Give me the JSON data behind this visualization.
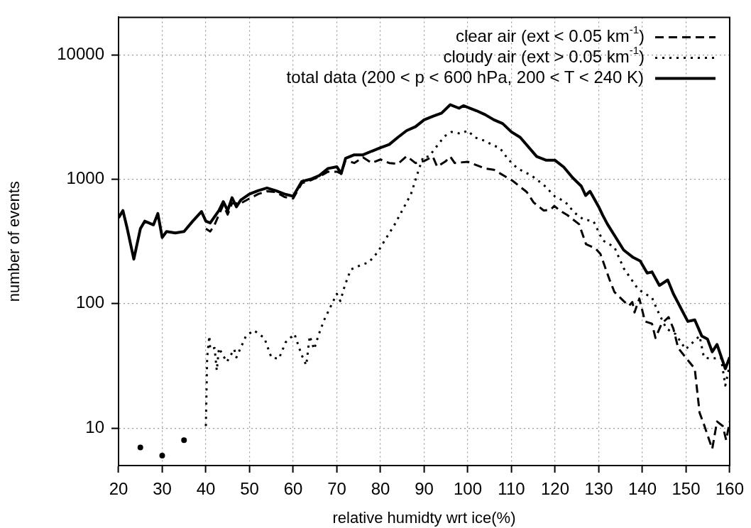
{
  "chart_data": {
    "type": "line",
    "xlabel": "relative humidty wrt ice(%)",
    "ylabel": "number of events",
    "log": "y",
    "grid": true,
    "legend": "top right",
    "xlim": [
      20,
      160
    ],
    "xticks": [
      20,
      30,
      40,
      50,
      60,
      70,
      80,
      90,
      100,
      110,
      120,
      130,
      140,
      150,
      160
    ],
    "ylim": [
      5,
      20000
    ],
    "yticks": [
      10,
      100,
      1000,
      10000
    ],
    "series": [
      {
        "name": "clear air (ext < 0.05 km$^{-1}$)",
        "color": "#000000",
        "line_style": "dashed",
        "x": [
          40,
          41,
          42,
          43,
          44,
          45,
          46,
          48,
          50,
          52,
          54,
          56,
          58,
          60,
          62,
          64,
          66,
          68,
          70,
          71,
          72,
          74,
          76,
          78,
          80,
          82,
          84,
          86,
          88,
          90,
          92,
          93,
          95,
          96,
          97,
          100,
          104,
          106,
          110.3,
          113.5,
          115.1,
          117.4,
          119,
          119.8,
          121.1,
          122.8,
          125.5,
          127.1,
          129.3,
          130.4,
          132.5,
          133.6,
          135.7,
          136.9,
          137.7,
          138.2,
          139.3,
          140.6,
          142.2,
          143,
          144.4,
          146,
          147.1,
          148.2,
          149.9,
          152,
          153.1,
          154.1,
          156,
          157.1,
          158.4,
          159.2,
          160
        ],
        "values": [
          400,
          380,
          430,
          520,
          620,
          520,
          640,
          640,
          700,
          760,
          800,
          790,
          720,
          700,
          930,
          980,
          1050,
          1150,
          1150,
          1110,
          1420,
          1350,
          1500,
          1350,
          1440,
          1350,
          1330,
          1530,
          1350,
          1400,
          1520,
          1260,
          1400,
          1520,
          1350,
          1380,
          1220,
          1190,
          970,
          790,
          650,
          560,
          570,
          610,
          560,
          515,
          435,
          300,
          277,
          250,
          155,
          124,
          105,
          96,
          103,
          85,
          110,
          72,
          69,
          53,
          69,
          78,
          63,
          44,
          37,
          30,
          13.3,
          10.7,
          6.8,
          11.3,
          10.4,
          8,
          11.3
        ]
      },
      {
        "name": "cloudy air (ext > 0.05 km$^{-1}$)",
        "color": "#000000",
        "line_style": "dotted",
        "x": [
          25,
          27,
          30,
          32,
          35,
          37,
          40,
          40.3,
          40.8,
          41,
          42,
          42.5,
          43,
          44.8,
          46.5,
          47,
          49.2,
          51,
          53.4,
          55,
          56.7,
          58.3,
          60.3,
          61.9,
          63,
          63.8,
          64.8,
          65.9,
          67.1,
          69.2,
          70,
          70.8,
          71.9,
          73.2,
          75.7,
          77.3,
          79.4,
          81,
          83.3,
          87,
          88.7,
          89.8,
          91.1,
          93,
          94.7,
          96.3,
          98.4,
          100,
          101.6,
          103.8,
          106,
          107.3,
          109.3,
          111.4,
          114.6,
          117.4,
          120,
          122.3,
          124.4,
          126.5,
          128.8,
          130.9,
          133.6,
          135.7,
          139,
          140.6,
          142.2,
          143.4,
          145.5,
          147.6,
          149.9,
          153.1,
          154.1,
          155.7,
          158,
          159,
          160
        ],
        "values": [
          7,
          null,
          6,
          null,
          8,
          null,
          10.4,
          37,
          55,
          43,
          44,
          29,
          44,
          34,
          43,
          37,
          55,
          61,
          53,
          37,
          36,
          49,
          57,
          39,
          32,
          55,
          43,
          57,
          74,
          105,
          120,
          105,
          142,
          188,
          206,
          214,
          260,
          323,
          435,
          760,
          1170,
          1520,
          1520,
          1860,
          2220,
          2400,
          2320,
          2460,
          2170,
          2040,
          1860,
          1790,
          1440,
          1220,
          1070,
          900,
          725,
          660,
          540,
          475,
          460,
          323,
          284,
          193,
          131,
          120,
          112,
          89,
          63,
          57,
          43,
          55,
          37,
          36,
          37,
          22,
          32
        ]
      },
      {
        "name": "total data (200 < p < 600 hPa, 200 < T < 240 K)",
        "color": "#000000",
        "line_style": "solid",
        "x": [
          20,
          21,
          22,
          23.5,
          25,
          26,
          28,
          29,
          30,
          31,
          33,
          35,
          37,
          39,
          40,
          41,
          43,
          44,
          45,
          46,
          47,
          48,
          50,
          52,
          54,
          56,
          58,
          60,
          62,
          64,
          66,
          68,
          70,
          71,
          72,
          74,
          76,
          78,
          80,
          82,
          84,
          86,
          88,
          90,
          92,
          94,
          96,
          98,
          99,
          102,
          104,
          106,
          108,
          110,
          112,
          115.8,
          118,
          120,
          122,
          124,
          126,
          127,
          128,
          130,
          130.9,
          132,
          135.7,
          137.9,
          139.5,
          141.1,
          142.2,
          143.9,
          145.8,
          147.1,
          150.4,
          152,
          153.6,
          154.9,
          156,
          157.1,
          159,
          160
        ],
        "values": [
          490,
          560,
          400,
          228,
          400,
          460,
          430,
          530,
          340,
          380,
          370,
          380,
          460,
          550,
          460,
          445,
          560,
          660,
          560,
          710,
          600,
          680,
          760,
          810,
          850,
          810,
          760,
          730,
          960,
          1000,
          1070,
          1220,
          1260,
          1110,
          1470,
          1570,
          1570,
          1680,
          1790,
          1900,
          2170,
          2460,
          2640,
          3000,
          3200,
          3400,
          3970,
          3720,
          3900,
          3550,
          3300,
          3000,
          2800,
          2400,
          2170,
          1520,
          1420,
          1420,
          1250,
          1030,
          880,
          740,
          800,
          600,
          515,
          435,
          270,
          235,
          220,
          176,
          180,
          140,
          155,
          120,
          72,
          74,
          55,
          52,
          41,
          47,
          30,
          37
        ]
      }
    ]
  }
}
